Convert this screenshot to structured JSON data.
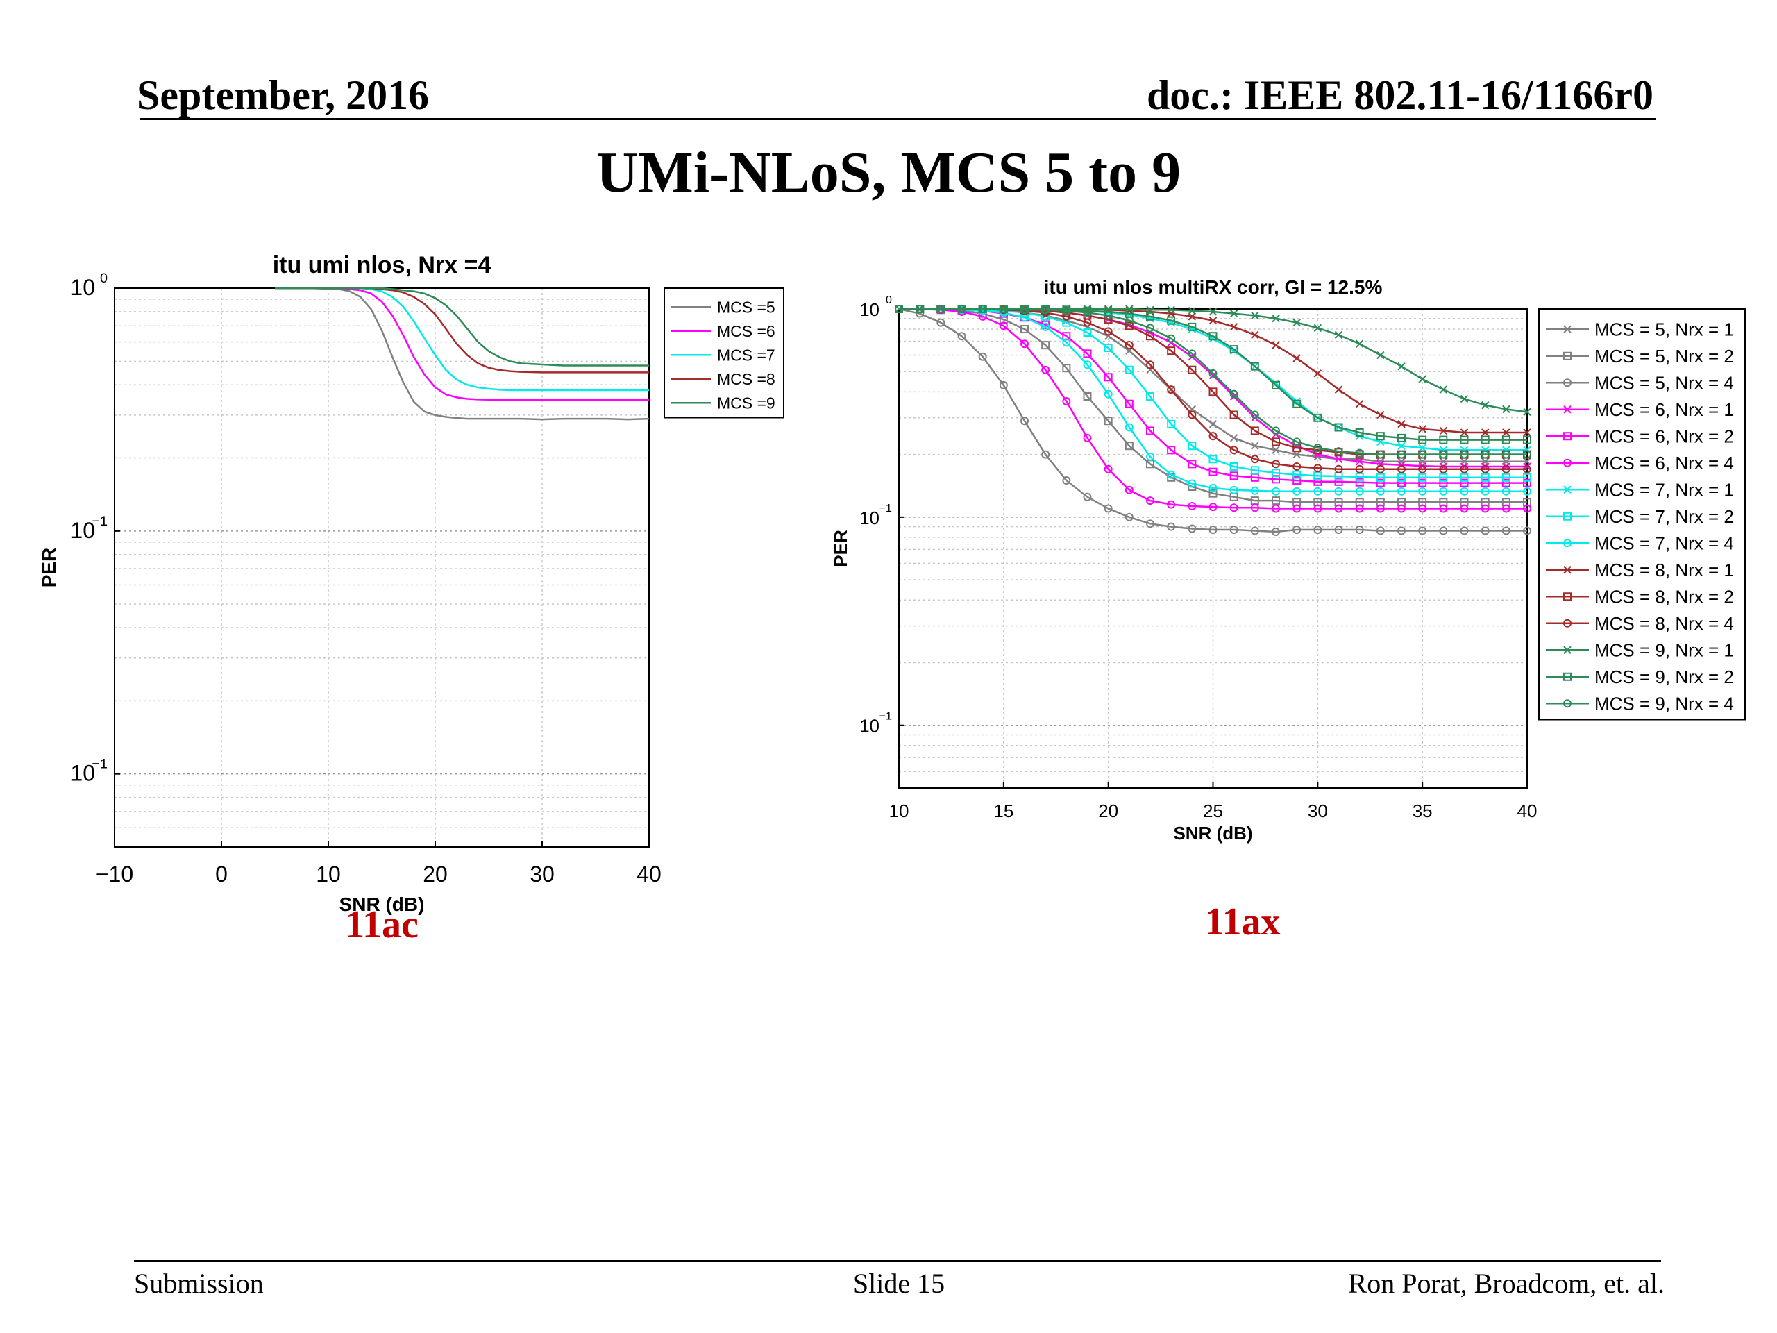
{
  "header": {
    "date": "September, 2016",
    "doc": "doc.: IEEE 802.11-16/1166r0"
  },
  "title": "UMi-NLoS, MCS 5 to 9",
  "captions": {
    "left": "11ac",
    "right": "11ax"
  },
  "footer": {
    "left": "Submission",
    "center": "Slide 15",
    "right": "Ron Porat, Broadcom, et. al."
  },
  "chart_data": [
    {
      "type": "line",
      "title": "itu umi nlos, Nrx =4",
      "xlabel": "SNR (dB)",
      "ylabel": "PER",
      "xlim": [
        -10,
        40
      ],
      "ylim": [
        0.005,
        1
      ],
      "yscale": "log",
      "xticks": [
        "−10",
        "0",
        "10",
        "20",
        "30",
        "40"
      ],
      "yticks": [
        1,
        0.1,
        0.01
      ],
      "grid": true,
      "legend_position": "outside-right-top",
      "x": [
        5,
        8,
        11,
        12,
        13,
        14,
        15,
        16,
        17,
        18,
        19,
        20,
        21,
        22,
        23,
        24,
        25,
        26,
        27,
        28,
        30,
        32,
        34,
        36,
        38,
        40
      ],
      "series": [
        {
          "name": "MCS =5",
          "color": "#808080",
          "values": [
            1.0,
            1.0,
            0.99,
            0.97,
            0.92,
            0.82,
            0.67,
            0.52,
            0.41,
            0.34,
            0.31,
            0.3,
            0.295,
            0.292,
            0.29,
            0.29,
            0.29,
            0.29,
            0.29,
            0.29,
            0.288,
            0.29,
            0.29,
            0.29,
            0.288,
            0.29
          ]
        },
        {
          "name": "MCS =6",
          "color": "#ff00ff",
          "values": [
            1.0,
            1.0,
            1.0,
            0.99,
            0.98,
            0.95,
            0.88,
            0.77,
            0.64,
            0.52,
            0.44,
            0.39,
            0.365,
            0.355,
            0.35,
            0.348,
            0.347,
            0.346,
            0.346,
            0.346,
            0.346,
            0.346,
            0.346,
            0.346,
            0.346,
            0.346
          ]
        },
        {
          "name": "MCS =7",
          "color": "#00eaea",
          "values": [
            1.0,
            1.0,
            1.0,
            1.0,
            1.0,
            0.99,
            0.97,
            0.92,
            0.84,
            0.73,
            0.62,
            0.53,
            0.46,
            0.42,
            0.4,
            0.39,
            0.385,
            0.382,
            0.38,
            0.38,
            0.38,
            0.38,
            0.38,
            0.38,
            0.38,
            0.38
          ]
        },
        {
          "name": "MCS =8",
          "color": "#a52a2a",
          "values": [
            1.0,
            1.0,
            1.0,
            1.0,
            1.0,
            1.0,
            0.99,
            0.98,
            0.96,
            0.92,
            0.86,
            0.78,
            0.68,
            0.59,
            0.53,
            0.49,
            0.47,
            0.46,
            0.455,
            0.452,
            0.45,
            0.45,
            0.45,
            0.45,
            0.45,
            0.45
          ]
        },
        {
          "name": "MCS =9",
          "color": "#2e8b57",
          "values": [
            1.0,
            1.0,
            1.0,
            1.0,
            1.0,
            1.0,
            1.0,
            0.99,
            0.98,
            0.97,
            0.95,
            0.91,
            0.85,
            0.77,
            0.68,
            0.6,
            0.55,
            0.52,
            0.5,
            0.49,
            0.485,
            0.48,
            0.48,
            0.48,
            0.48,
            0.48
          ]
        }
      ]
    },
    {
      "type": "line",
      "title": "itu umi nlos multiRX corr, GI = 12.5%",
      "xlabel": "SNR (dB)",
      "ylabel": "PER",
      "xlim": [
        10,
        40
      ],
      "ylim": [
        0.005,
        1
      ],
      "yscale": "log",
      "xticks": [
        "10",
        "15",
        "20",
        "25",
        "30",
        "35",
        "40"
      ],
      "yticks": [
        1,
        0.1,
        0.01
      ],
      "grid": true,
      "legend_position": "outside-right-top",
      "x": [
        10,
        11,
        12,
        13,
        14,
        15,
        16,
        17,
        18,
        19,
        20,
        21,
        22,
        23,
        24,
        25,
        26,
        27,
        28,
        29,
        30,
        31,
        32,
        33,
        34,
        35,
        36,
        37,
        38,
        39,
        40
      ],
      "series": [
        {
          "name": "MCS = 5, Nrx = 1",
          "color": "#808080",
          "marker": "x",
          "values": [
            1.0,
            1.0,
            1.0,
            1.0,
            0.99,
            0.98,
            0.96,
            0.93,
            0.88,
            0.82,
            0.74,
            0.63,
            0.51,
            0.41,
            0.33,
            0.28,
            0.24,
            0.22,
            0.21,
            0.2,
            0.195,
            0.19,
            0.19,
            0.185,
            0.185,
            0.185,
            0.185,
            0.185,
            0.185,
            0.185,
            0.185
          ]
        },
        {
          "name": "MCS = 5, Nrx = 2",
          "color": "#808080",
          "marker": "square",
          "values": [
            1.0,
            1.0,
            0.99,
            0.98,
            0.95,
            0.89,
            0.8,
            0.67,
            0.52,
            0.38,
            0.29,
            0.22,
            0.18,
            0.155,
            0.14,
            0.13,
            0.125,
            0.12,
            0.12,
            0.118,
            0.118,
            0.118,
            0.118,
            0.118,
            0.118,
            0.118,
            0.118,
            0.118,
            0.118,
            0.118,
            0.118
          ]
        },
        {
          "name": "MCS = 5, Nrx = 4",
          "color": "#808080",
          "marker": "circle",
          "values": [
            1.0,
            0.95,
            0.86,
            0.74,
            0.59,
            0.43,
            0.29,
            0.2,
            0.15,
            0.125,
            0.11,
            0.1,
            0.093,
            0.09,
            0.088,
            0.087,
            0.087,
            0.086,
            0.085,
            0.087,
            0.087,
            0.087,
            0.087,
            0.086,
            0.086,
            0.086,
            0.086,
            0.086,
            0.086,
            0.086,
            0.086
          ]
        },
        {
          "name": "MCS = 6, Nrx = 1",
          "color": "#ff00ff",
          "marker": "x",
          "values": [
            1.0,
            1.0,
            1.0,
            1.0,
            1.0,
            1.0,
            0.99,
            0.98,
            0.96,
            0.93,
            0.89,
            0.84,
            0.77,
            0.69,
            0.59,
            0.48,
            0.38,
            0.3,
            0.25,
            0.22,
            0.2,
            0.19,
            0.185,
            0.18,
            0.178,
            0.176,
            0.175,
            0.175,
            0.175,
            0.175,
            0.175
          ]
        },
        {
          "name": "MCS = 6, Nrx = 2",
          "color": "#ff00ff",
          "marker": "square",
          "values": [
            1.0,
            1.0,
            1.0,
            0.99,
            0.98,
            0.95,
            0.91,
            0.84,
            0.74,
            0.61,
            0.47,
            0.35,
            0.26,
            0.21,
            0.18,
            0.165,
            0.158,
            0.155,
            0.152,
            0.15,
            0.148,
            0.148,
            0.147,
            0.146,
            0.146,
            0.146,
            0.146,
            0.146,
            0.146,
            0.146,
            0.146
          ]
        },
        {
          "name": "MCS = 6, Nrx = 4",
          "color": "#ff00ff",
          "marker": "circle",
          "values": [
            1.0,
            1.0,
            0.99,
            0.97,
            0.92,
            0.83,
            0.68,
            0.51,
            0.36,
            0.24,
            0.17,
            0.135,
            0.12,
            0.115,
            0.113,
            0.112,
            0.111,
            0.111,
            0.11,
            0.11,
            0.11,
            0.11,
            0.11,
            0.11,
            0.11,
            0.11,
            0.11,
            0.11,
            0.11,
            0.11,
            0.11
          ]
        },
        {
          "name": "MCS = 7, Nrx = 1",
          "color": "#00eaea",
          "marker": "x",
          "values": [
            1.0,
            1.0,
            1.0,
            1.0,
            1.0,
            1.0,
            1.0,
            1.0,
            0.99,
            0.98,
            0.96,
            0.94,
            0.9,
            0.86,
            0.8,
            0.72,
            0.63,
            0.53,
            0.44,
            0.36,
            0.3,
            0.27,
            0.245,
            0.23,
            0.22,
            0.215,
            0.21,
            0.21,
            0.21,
            0.21,
            0.21
          ]
        },
        {
          "name": "MCS = 7, Nrx = 2",
          "color": "#00eaea",
          "marker": "square",
          "values": [
            1.0,
            1.0,
            1.0,
            1.0,
            0.99,
            0.98,
            0.96,
            0.92,
            0.86,
            0.77,
            0.65,
            0.51,
            0.38,
            0.28,
            0.22,
            0.19,
            0.175,
            0.168,
            0.163,
            0.16,
            0.158,
            0.157,
            0.156,
            0.155,
            0.155,
            0.155,
            0.155,
            0.155,
            0.155,
            0.155,
            0.155
          ]
        },
        {
          "name": "MCS = 7, Nrx = 4",
          "color": "#00eaea",
          "marker": "circle",
          "values": [
            1.0,
            1.0,
            1.0,
            0.99,
            0.98,
            0.96,
            0.91,
            0.82,
            0.69,
            0.54,
            0.39,
            0.27,
            0.195,
            0.16,
            0.145,
            0.138,
            0.135,
            0.134,
            0.133,
            0.133,
            0.133,
            0.133,
            0.133,
            0.133,
            0.133,
            0.133,
            0.133,
            0.133,
            0.133,
            0.133,
            0.133
          ]
        },
        {
          "name": "MCS = 8, Nrx = 1",
          "color": "#a52a2a",
          "marker": "x",
          "values": [
            1.0,
            1.0,
            1.0,
            1.0,
            1.0,
            1.0,
            1.0,
            1.0,
            1.0,
            1.0,
            0.99,
            0.98,
            0.97,
            0.95,
            0.92,
            0.88,
            0.82,
            0.75,
            0.67,
            0.58,
            0.49,
            0.41,
            0.35,
            0.31,
            0.28,
            0.265,
            0.26,
            0.255,
            0.255,
            0.255,
            0.255
          ]
        },
        {
          "name": "MCS = 8, Nrx = 2",
          "color": "#a52a2a",
          "marker": "square",
          "values": [
            1.0,
            1.0,
            1.0,
            1.0,
            1.0,
            1.0,
            0.99,
            0.98,
            0.96,
            0.93,
            0.89,
            0.83,
            0.74,
            0.63,
            0.51,
            0.4,
            0.31,
            0.26,
            0.23,
            0.215,
            0.21,
            0.205,
            0.2,
            0.2,
            0.2,
            0.2,
            0.2,
            0.2,
            0.2,
            0.2,
            0.2
          ]
        },
        {
          "name": "MCS = 8, Nrx = 4",
          "color": "#a52a2a",
          "marker": "circle",
          "values": [
            1.0,
            1.0,
            1.0,
            1.0,
            1.0,
            0.99,
            0.98,
            0.96,
            0.92,
            0.86,
            0.78,
            0.67,
            0.54,
            0.41,
            0.31,
            0.245,
            0.21,
            0.19,
            0.18,
            0.175,
            0.172,
            0.17,
            0.17,
            0.17,
            0.17,
            0.17,
            0.17,
            0.17,
            0.17,
            0.17,
            0.17
          ]
        },
        {
          "name": "MCS = 9, Nrx = 1",
          "color": "#2e8b57",
          "marker": "x",
          "values": [
            1.0,
            1.0,
            1.0,
            1.0,
            1.0,
            1.0,
            1.0,
            1.0,
            1.0,
            1.0,
            1.0,
            1.0,
            0.99,
            0.99,
            0.98,
            0.97,
            0.95,
            0.93,
            0.9,
            0.86,
            0.81,
            0.75,
            0.68,
            0.6,
            0.53,
            0.46,
            0.41,
            0.37,
            0.345,
            0.33,
            0.32
          ]
        },
        {
          "name": "MCS = 9, Nrx = 2",
          "color": "#2e8b57",
          "marker": "square",
          "values": [
            1.0,
            1.0,
            1.0,
            1.0,
            1.0,
            1.0,
            1.0,
            1.0,
            0.99,
            0.98,
            0.97,
            0.95,
            0.92,
            0.88,
            0.82,
            0.74,
            0.64,
            0.53,
            0.43,
            0.35,
            0.3,
            0.27,
            0.255,
            0.245,
            0.24,
            0.235,
            0.235,
            0.235,
            0.235,
            0.235,
            0.235
          ]
        },
        {
          "name": "MCS = 9, Nrx = 4",
          "color": "#2e8b57",
          "marker": "circle",
          "values": [
            1.0,
            1.0,
            1.0,
            1.0,
            1.0,
            1.0,
            0.99,
            0.99,
            0.98,
            0.96,
            0.93,
            0.88,
            0.81,
            0.72,
            0.61,
            0.49,
            0.39,
            0.31,
            0.26,
            0.23,
            0.215,
            0.207,
            0.203,
            0.2,
            0.2,
            0.2,
            0.2,
            0.2,
            0.2,
            0.2,
            0.2
          ]
        }
      ]
    }
  ]
}
